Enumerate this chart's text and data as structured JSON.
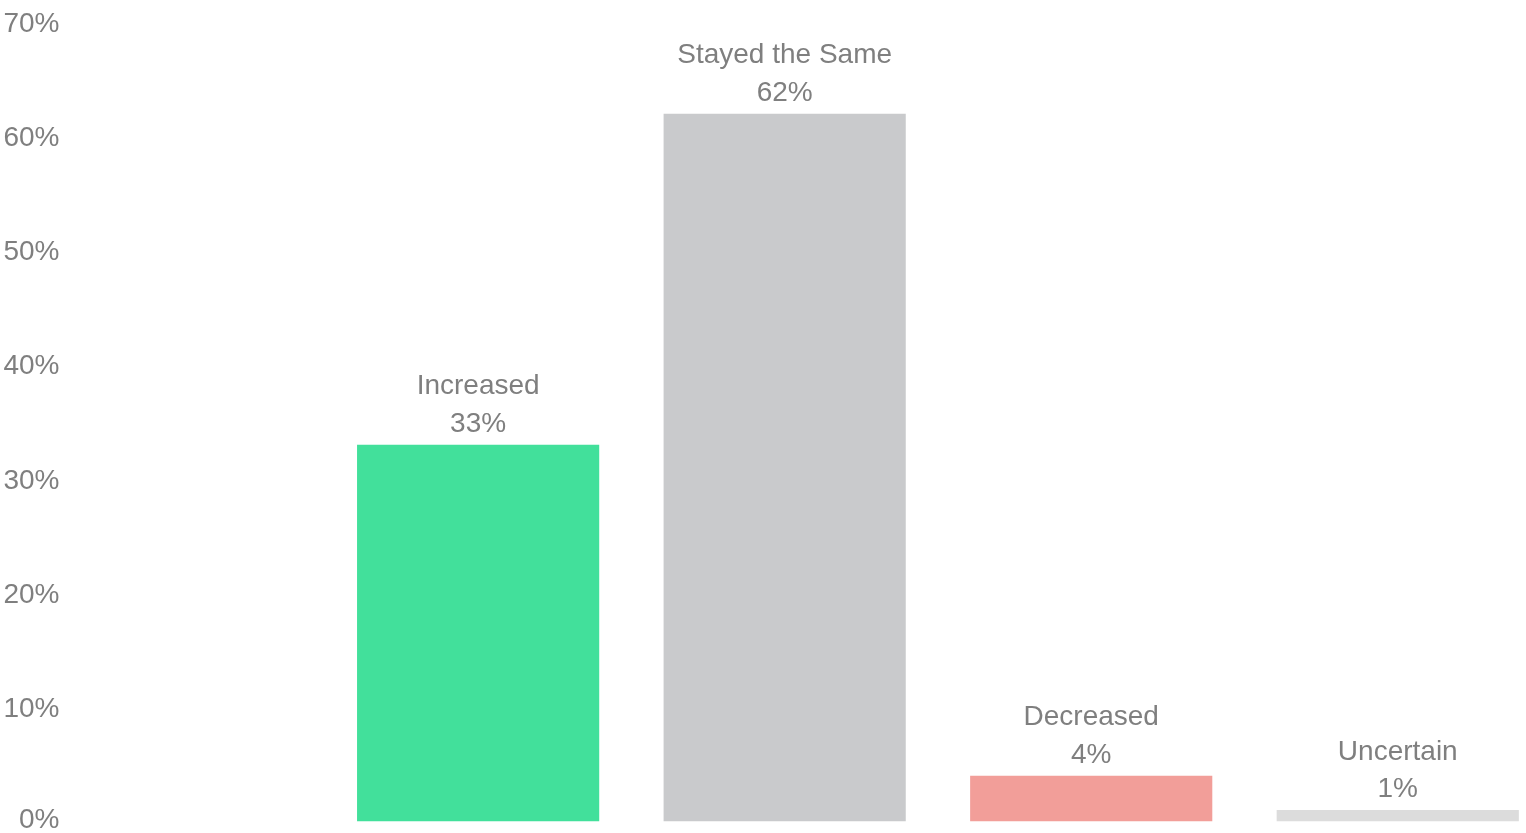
{
  "chart_data": {
    "type": "bar",
    "categories": [
      "Increased",
      "Stayed the Same",
      "Decreased",
      "Uncertain"
    ],
    "values": [
      33,
      62,
      4,
      1
    ],
    "value_labels": [
      "33%",
      "62%",
      "4%",
      "1%"
    ],
    "colors": [
      "#42e09b",
      "#c9cacc",
      "#f29e99",
      "#dcdcdc"
    ],
    "ylim": [
      0,
      70
    ],
    "yticks": [
      {
        "value": 0,
        "label": "0%"
      },
      {
        "value": 10,
        "label": "10%"
      },
      {
        "value": 20,
        "label": "20%"
      },
      {
        "value": 30,
        "label": "30%"
      },
      {
        "value": 40,
        "label": "40%"
      },
      {
        "value": 50,
        "label": "50%"
      },
      {
        "value": 60,
        "label": "60%"
      },
      {
        "value": 70,
        "label": "70%"
      }
    ],
    "grid": false
  }
}
